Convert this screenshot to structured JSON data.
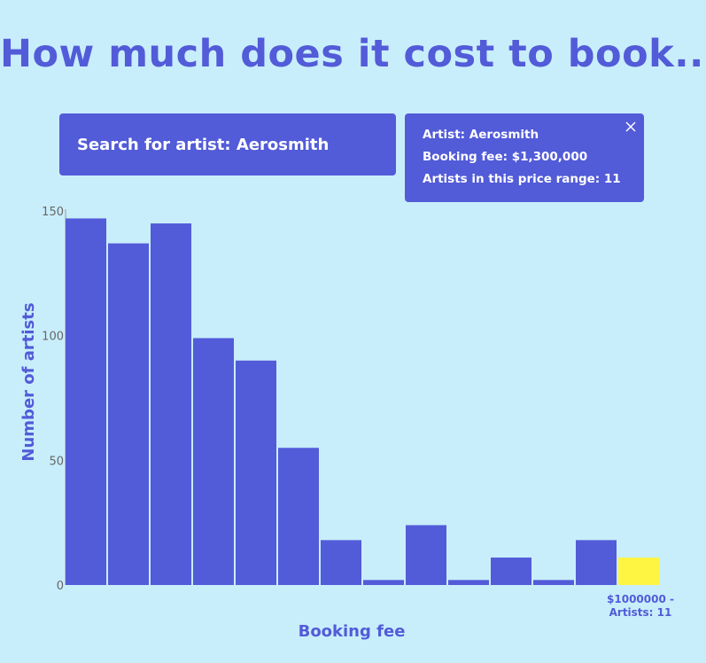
{
  "title": "How much does it cost to book...",
  "search": {
    "label": "Search for artist:",
    "value": "Aerosmith"
  },
  "info": {
    "artist_line": "Artist: Aerosmith",
    "fee_line": "Booking fee: $1,300,000",
    "count_line": "Artists in this price range: 11"
  },
  "colors": {
    "background": "#c8eefb",
    "bar": "#525bd8",
    "highlight": "#fdf542",
    "accent": "#525bd8"
  },
  "icons": {
    "close": "close-icon"
  },
  "chart_data": {
    "type": "bar",
    "title": "",
    "xlabel": "Booking fee",
    "ylabel": "Number of artists",
    "ylim": [
      0,
      150
    ],
    "yticks": [
      0,
      50,
      100,
      150
    ],
    "grid": false,
    "values": [
      147,
      137,
      145,
      99,
      90,
      55,
      18,
      2,
      24,
      2,
      11,
      2,
      18,
      11
    ],
    "highlight_index": 13,
    "highlight_labels": [
      "$1000000 -",
      "Artists: 11"
    ]
  }
}
